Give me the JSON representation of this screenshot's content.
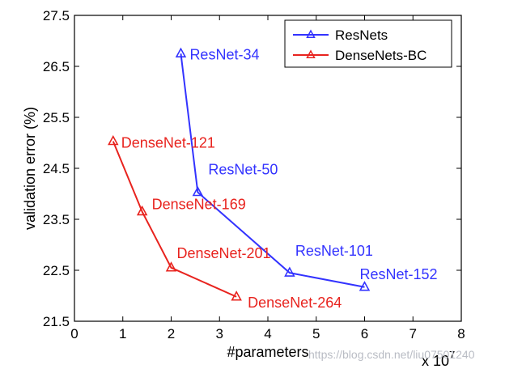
{
  "chart_data": {
    "type": "line",
    "xlabel": "#parameters",
    "ylabel": "validation error (%)",
    "x_multiplier": "x 10",
    "x_multiplier_exponent": "7",
    "xlim": [
      0,
      8
    ],
    "ylim": [
      21.5,
      27.5
    ],
    "xticks": [
      0,
      1,
      2,
      3,
      4,
      5,
      6,
      7,
      8
    ],
    "yticks": [
      "21.5",
      "22.5",
      "23.5",
      "24.5",
      "25.5",
      "26.5",
      "27.5"
    ],
    "legend_position": "top-right",
    "grid": false,
    "series": [
      {
        "name": "ResNets",
        "color": "#3333ff",
        "marker": "triangle",
        "points": [
          {
            "x": 2.2,
            "y": 26.75,
            "label": "ResNet-34"
          },
          {
            "x": 2.55,
            "y": 24.03,
            "label": "ResNet-50"
          },
          {
            "x": 4.45,
            "y": 22.45,
            "label": "ResNet-101"
          },
          {
            "x": 6.0,
            "y": 22.17,
            "label": "ResNet-152"
          }
        ]
      },
      {
        "name": "DenseNets-BC",
        "color": "#e8231e",
        "marker": "triangle",
        "points": [
          {
            "x": 0.8,
            "y": 25.03,
            "label": "DenseNet-121"
          },
          {
            "x": 1.4,
            "y": 23.65,
            "label": "DenseNet-169"
          },
          {
            "x": 2.0,
            "y": 22.55,
            "label": "DenseNet-201"
          },
          {
            "x": 3.35,
            "y": 21.98,
            "label": "DenseNet-264"
          }
        ]
      }
    ]
  },
  "watermark": "https://blog.csdn.net/liu07501240"
}
